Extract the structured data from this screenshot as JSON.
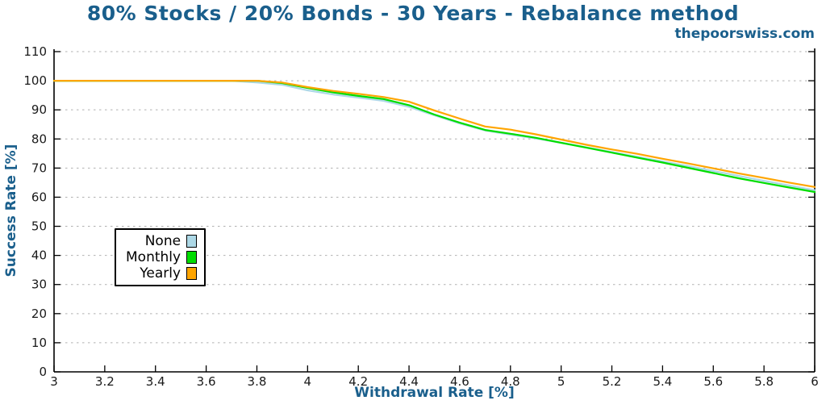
{
  "header": {
    "title": "80% Stocks / 20% Bonds - 30 Years - Rebalance method",
    "watermark": "thepoorswiss.com"
  },
  "colors": {
    "heading_blue": "#1A5F8C",
    "grid": "#b0b0b0",
    "axis": "#000000",
    "tick_label": "#1a1a1a"
  },
  "chart_data": {
    "type": "line",
    "title": "80% Stocks / 20% Bonds - 30 Years - Rebalance method",
    "xlabel": "Withdrawal Rate [%]",
    "ylabel": "Success Rate [%]",
    "xlim": [
      3,
      6
    ],
    "ylim": [
      0,
      110
    ],
    "grid": "horizontal-dashed",
    "legend_position": "inside-left-middle",
    "x_ticks": {
      "values": [
        3,
        3.2,
        3.4,
        3.6,
        3.8,
        4,
        4.2,
        4.4,
        4.6,
        4.8,
        5,
        5.2,
        5.4,
        5.6,
        5.8,
        6
      ],
      "labels": [
        "3",
        "3.2",
        "3.4",
        "3.6",
        "3.8",
        "4",
        "4.2",
        "4.4",
        "4.6",
        "4.8",
        "5",
        "5.2",
        "5.4",
        "5.6",
        "5.8",
        "6"
      ]
    },
    "y_ticks": {
      "values": [
        0,
        10,
        20,
        30,
        40,
        50,
        60,
        70,
        80,
        90,
        100,
        110
      ],
      "labels": [
        "0",
        "10",
        "20",
        "30",
        "40",
        "50",
        "60",
        "70",
        "80",
        "90",
        "100",
        "110"
      ]
    },
    "x": [
      3.0,
      3.1,
      3.2,
      3.3,
      3.4,
      3.5,
      3.6,
      3.7,
      3.8,
      3.9,
      4.0,
      4.1,
      4.2,
      4.3,
      4.4,
      4.5,
      4.6,
      4.7,
      4.8,
      4.9,
      5.0,
      5.1,
      5.2,
      5.3,
      5.4,
      5.5,
      5.6,
      5.7,
      5.8,
      5.9,
      6.0
    ],
    "series": [
      {
        "name": "None",
        "color": "#ADD8E6",
        "values": [
          100,
          100,
          100,
          100,
          100,
          100,
          100,
          100,
          99.4,
          98.6,
          96.7,
          95.3,
          94.2,
          93.1,
          91.0,
          88.1,
          85.3,
          82.9,
          81.5,
          80.2,
          78.7,
          77.1,
          75.5,
          73.9,
          72.3,
          70.7,
          69.0,
          67.3,
          65.6,
          64.0,
          62.4
        ]
      },
      {
        "name": "Monthly",
        "color": "#00DD00",
        "values": [
          100,
          100,
          100,
          100,
          100,
          100,
          100,
          100,
          100,
          99.2,
          97.5,
          96.0,
          94.8,
          93.7,
          91.6,
          88.4,
          85.6,
          83.1,
          81.8,
          80.4,
          78.7,
          77.0,
          75.3,
          73.6,
          71.9,
          70.1,
          68.3,
          66.5,
          64.9,
          63.3,
          61.8
        ]
      },
      {
        "name": "Yearly",
        "color": "#FFA500",
        "values": [
          100,
          100,
          100,
          100,
          100,
          100,
          100,
          100,
          100,
          99.4,
          97.8,
          96.5,
          95.5,
          94.4,
          92.8,
          89.8,
          87.0,
          84.3,
          83.2,
          81.6,
          79.8,
          78.0,
          76.4,
          74.9,
          73.2,
          71.6,
          69.9,
          68.2,
          66.6,
          65.0,
          63.5
        ]
      }
    ]
  }
}
